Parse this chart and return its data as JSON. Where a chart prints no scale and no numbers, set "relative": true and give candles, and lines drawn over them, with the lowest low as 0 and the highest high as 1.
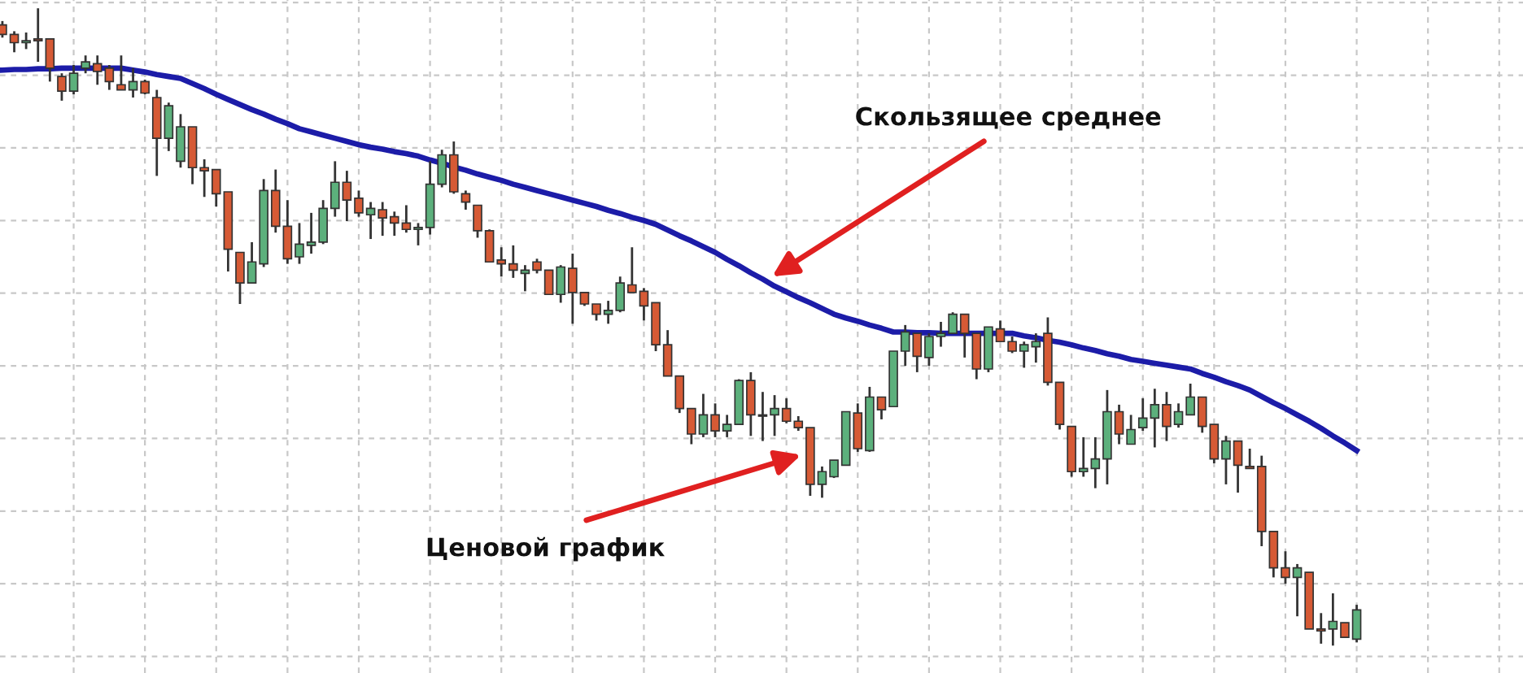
{
  "chart_data": {
    "type": "candlestick",
    "relative": true,
    "grid": true,
    "categories": [
      null,
      null,
      null,
      null,
      null,
      null,
      null,
      null,
      null,
      null,
      null,
      null,
      null,
      null,
      null,
      null,
      null,
      null,
      null,
      null,
      null,
      null,
      null,
      null,
      null,
      null,
      null,
      null,
      null,
      null,
      null,
      null,
      null,
      null,
      null,
      null,
      null,
      null,
      null,
      null,
      null,
      null,
      null,
      null,
      null,
      null,
      null,
      null,
      null,
      null,
      null,
      null,
      null,
      null,
      null,
      null,
      null,
      null,
      null,
      null,
      null,
      null,
      null,
      null,
      null,
      null,
      null,
      null,
      null,
      null,
      null,
      null,
      null,
      null,
      null,
      null,
      null,
      null,
      null,
      null,
      null,
      null,
      null,
      null,
      null,
      null,
      null,
      null,
      null,
      null,
      null,
      null,
      null,
      null,
      null,
      null,
      null,
      null,
      null,
      null,
      null,
      null,
      null,
      null,
      null,
      null,
      null,
      null,
      null,
      null,
      null,
      null,
      null,
      null,
      null
    ],
    "ohlc": [
      [
        0.974,
        0.98,
        0.954,
        0.959
      ],
      [
        0.959,
        0.964,
        0.931,
        0.946
      ],
      [
        0.946,
        0.962,
        0.936,
        0.949
      ],
      [
        0.952,
        1.0,
        0.916,
        0.949
      ],
      [
        0.952,
        0.952,
        0.885,
        0.906
      ],
      [
        0.893,
        0.898,
        0.855,
        0.87
      ],
      [
        0.87,
        0.911,
        0.865,
        0.898
      ],
      [
        0.906,
        0.926,
        0.898,
        0.916
      ],
      [
        0.913,
        0.926,
        0.88,
        0.901
      ],
      [
        0.906,
        0.911,
        0.872,
        0.885
      ],
      [
        0.88,
        0.926,
        0.872,
        0.872
      ],
      [
        0.872,
        0.906,
        0.86,
        0.885
      ],
      [
        0.885,
        0.888,
        0.865,
        0.867
      ],
      [
        0.86,
        0.872,
        0.737,
        0.796
      ],
      [
        0.796,
        0.852,
        0.776,
        0.847
      ],
      [
        0.76,
        0.834,
        0.75,
        0.814
      ],
      [
        0.814,
        0.814,
        0.724,
        0.75
      ],
      [
        0.75,
        0.763,
        0.704,
        0.745
      ],
      [
        0.747,
        0.747,
        0.689,
        0.709
      ],
      [
        0.712,
        0.712,
        0.587,
        0.622
      ],
      [
        0.617,
        0.617,
        0.536,
        0.569
      ],
      [
        0.569,
        0.633,
        0.569,
        0.602
      ],
      [
        0.599,
        0.732,
        0.594,
        0.714
      ],
      [
        0.714,
        0.747,
        0.648,
        0.658
      ],
      [
        0.658,
        0.699,
        0.599,
        0.607
      ],
      [
        0.61,
        0.663,
        0.599,
        0.63
      ],
      [
        0.628,
        0.679,
        0.615,
        0.633
      ],
      [
        0.633,
        0.699,
        0.63,
        0.686
      ],
      [
        0.686,
        0.76,
        0.673,
        0.727
      ],
      [
        0.727,
        0.745,
        0.666,
        0.699
      ],
      [
        0.702,
        0.714,
        0.673,
        0.679
      ],
      [
        0.676,
        0.696,
        0.638,
        0.686
      ],
      [
        0.684,
        0.696,
        0.643,
        0.671
      ],
      [
        0.673,
        0.681,
        0.643,
        0.663
      ],
      [
        0.663,
        0.691,
        0.648,
        0.653
      ],
      [
        0.653,
        0.663,
        0.628,
        0.656
      ],
      [
        0.656,
        0.76,
        0.645,
        0.724
      ],
      [
        0.724,
        0.778,
        0.719,
        0.77
      ],
      [
        0.77,
        0.791,
        0.709,
        0.712
      ],
      [
        0.709,
        0.714,
        0.684,
        0.696
      ],
      [
        0.691,
        0.691,
        0.64,
        0.651
      ],
      [
        0.651,
        0.653,
        0.602,
        0.602
      ],
      [
        0.605,
        0.625,
        0.579,
        0.599
      ],
      [
        0.599,
        0.628,
        0.577,
        0.589
      ],
      [
        0.584,
        0.597,
        0.556,
        0.589
      ],
      [
        0.602,
        0.607,
        0.584,
        0.589
      ],
      [
        0.589,
        0.589,
        0.551,
        0.551
      ],
      [
        0.551,
        0.597,
        0.538,
        0.594
      ],
      [
        0.592,
        0.615,
        0.505,
        0.554
      ],
      [
        0.554,
        0.554,
        0.533,
        0.536
      ],
      [
        0.536,
        0.536,
        0.51,
        0.52
      ],
      [
        0.52,
        0.541,
        0.505,
        0.526
      ],
      [
        0.526,
        0.579,
        0.523,
        0.569
      ],
      [
        0.566,
        0.625,
        0.554,
        0.554
      ],
      [
        0.556,
        0.561,
        0.51,
        0.533
      ],
      [
        0.538,
        0.538,
        0.462,
        0.472
      ],
      [
        0.472,
        0.495,
        0.423,
        0.423
      ],
      [
        0.423,
        0.423,
        0.365,
        0.372
      ],
      [
        0.372,
        0.372,
        0.316,
        0.332
      ],
      [
        0.332,
        0.395,
        0.327,
        0.362
      ],
      [
        0.362,
        0.38,
        0.327,
        0.337
      ],
      [
        0.337,
        0.362,
        0.327,
        0.347
      ],
      [
        0.347,
        0.418,
        0.347,
        0.416
      ],
      [
        0.416,
        0.429,
        0.329,
        0.362
      ],
      [
        0.362,
        0.398,
        0.321,
        0.36
      ],
      [
        0.362,
        0.393,
        0.329,
        0.372
      ],
      [
        0.372,
        0.388,
        0.349,
        0.352
      ],
      [
        0.352,
        0.36,
        0.337,
        0.342
      ],
      [
        0.342,
        0.342,
        0.235,
        0.253
      ],
      [
        0.253,
        0.281,
        0.232,
        0.273
      ],
      [
        0.265,
        0.291,
        0.263,
        0.291
      ],
      [
        0.283,
        0.367,
        0.283,
        0.367
      ],
      [
        0.365,
        0.38,
        0.304,
        0.309
      ],
      [
        0.306,
        0.406,
        0.304,
        0.39
      ],
      [
        0.39,
        0.39,
        0.355,
        0.37
      ],
      [
        0.375,
        0.462,
        0.375,
        0.462
      ],
      [
        0.462,
        0.503,
        0.439,
        0.492
      ],
      [
        0.49,
        0.49,
        0.429,
        0.454
      ],
      [
        0.452,
        0.49,
        0.439,
        0.485
      ],
      [
        0.485,
        0.508,
        0.469,
        0.49
      ],
      [
        0.49,
        0.523,
        0.49,
        0.52
      ],
      [
        0.52,
        0.52,
        0.452,
        0.49
      ],
      [
        0.49,
        0.49,
        0.418,
        0.434
      ],
      [
        0.434,
        0.5,
        0.429,
        0.5
      ],
      [
        0.497,
        0.51,
        0.477,
        0.477
      ],
      [
        0.477,
        0.485,
        0.459,
        0.462
      ],
      [
        0.462,
        0.477,
        0.436,
        0.472
      ],
      [
        0.469,
        0.49,
        0.444,
        0.477
      ],
      [
        0.49,
        0.515,
        0.408,
        0.413
      ],
      [
        0.413,
        0.413,
        0.339,
        0.347
      ],
      [
        0.344,
        0.344,
        0.265,
        0.273
      ],
      [
        0.273,
        0.327,
        0.265,
        0.278
      ],
      [
        0.278,
        0.327,
        0.247,
        0.293
      ],
      [
        0.293,
        0.401,
        0.253,
        0.367
      ],
      [
        0.367,
        0.378,
        0.316,
        0.332
      ],
      [
        0.316,
        0.362,
        0.316,
        0.339
      ],
      [
        0.342,
        0.388,
        0.337,
        0.357
      ],
      [
        0.357,
        0.403,
        0.311,
        0.378
      ],
      [
        0.378,
        0.398,
        0.321,
        0.344
      ],
      [
        0.347,
        0.38,
        0.342,
        0.367
      ],
      [
        0.362,
        0.411,
        0.362,
        0.39
      ],
      [
        0.39,
        0.39,
        0.334,
        0.344
      ],
      [
        0.347,
        0.347,
        0.286,
        0.293
      ],
      [
        0.293,
        0.329,
        0.253,
        0.321
      ],
      [
        0.321,
        0.321,
        0.24,
        0.283
      ],
      [
        0.281,
        0.309,
        0.278,
        0.278
      ],
      [
        0.281,
        0.298,
        0.156,
        0.179
      ],
      [
        0.179,
        0.179,
        0.107,
        0.122
      ],
      [
        0.122,
        0.148,
        0.097,
        0.107
      ],
      [
        0.107,
        0.128,
        0.046,
        0.122
      ],
      [
        0.115,
        0.115,
        0.026,
        0.026
      ],
      [
        0.026,
        0.051,
        0.003,
        0.023
      ],
      [
        0.026,
        0.082,
        0.0,
        0.038
      ],
      [
        0.036,
        0.036,
        0.013,
        0.013
      ],
      [
        0.01,
        0.064,
        0.005,
        0.056
      ]
    ],
    "colors": [
      "#d65a35",
      "#d65a35",
      "#5cb07c",
      "#d65a35",
      "#d65a35",
      "#d65a35",
      "#5cb07c",
      "#5cb07c",
      "#d65a35",
      "#d65a35",
      "#d65a35",
      "#5cb07c",
      "#d65a35",
      "#d65a35",
      "#5cb07c",
      "#5cb07c",
      "#d65a35",
      "#d65a35",
      "#d65a35",
      "#d65a35",
      "#d65a35",
      "#5cb07c",
      "#5cb07c",
      "#d65a35",
      "#d65a35",
      "#5cb07c",
      "#5cb07c",
      "#5cb07c",
      "#5cb07c",
      "#d65a35",
      "#d65a35",
      "#5cb07c",
      "#d65a35",
      "#d65a35",
      "#d65a35",
      "#5cb07c",
      "#5cb07c",
      "#5cb07c",
      "#d65a35",
      "#d65a35",
      "#d65a35",
      "#d65a35",
      "#d65a35",
      "#d65a35",
      "#5cb07c",
      "#d65a35",
      "#d65a35",
      "#5cb07c",
      "#d65a35",
      "#d65a35",
      "#d65a35",
      "#5cb07c",
      "#5cb07c",
      "#d65a35",
      "#d65a35",
      "#d65a35",
      "#d65a35",
      "#d65a35",
      "#d65a35",
      "#5cb07c",
      "#d65a35",
      "#5cb07c",
      "#5cb07c",
      "#d65a35",
      "#d65a35",
      "#5cb07c",
      "#d65a35",
      "#d65a35",
      "#d65a35",
      "#5cb07c",
      "#5cb07c",
      "#5cb07c",
      "#d65a35",
      "#5cb07c",
      "#d65a35",
      "#5cb07c",
      "#5cb07c",
      "#d65a35",
      "#5cb07c",
      "#5cb07c",
      "#5cb07c",
      "#d65a35",
      "#d65a35",
      "#5cb07c",
      "#d65a35",
      "#d65a35",
      "#5cb07c",
      "#5cb07c",
      "#d65a35",
      "#d65a35",
      "#d65a35",
      "#5cb07c",
      "#5cb07c",
      "#5cb07c",
      "#d65a35",
      "#5cb07c",
      "#5cb07c",
      "#5cb07c",
      "#d65a35",
      "#5cb07c",
      "#5cb07c",
      "#d65a35",
      "#d65a35",
      "#5cb07c",
      "#d65a35",
      "#d65a35",
      "#d65a35",
      "#d65a35",
      "#d65a35",
      "#5cb07c",
      "#d65a35",
      "#d65a35",
      "#5cb07c",
      "#d65a35",
      "#5cb07c"
    ],
    "series": [
      {
        "type": "line",
        "color": "#1c1ca8",
        "values": [
          0.903,
          0.904,
          0.904,
          0.905,
          0.905,
          0.906,
          0.906,
          0.906,
          0.906,
          0.906,
          0.906,
          0.903,
          0.9,
          0.896,
          0.893,
          0.89,
          0.882,
          0.874,
          0.865,
          0.857,
          0.849,
          0.841,
          0.834,
          0.826,
          0.819,
          0.811,
          0.806,
          0.801,
          0.796,
          0.791,
          0.786,
          0.782,
          0.779,
          0.775,
          0.772,
          0.768,
          0.762,
          0.757,
          0.751,
          0.746,
          0.74,
          0.735,
          0.73,
          0.724,
          0.719,
          0.714,
          0.709,
          0.704,
          0.699,
          0.694,
          0.689,
          0.683,
          0.678,
          0.672,
          0.667,
          0.661,
          0.652,
          0.643,
          0.635,
          0.626,
          0.617,
          0.606,
          0.596,
          0.585,
          0.575,
          0.564,
          0.555,
          0.546,
          0.538,
          0.529,
          0.52,
          0.514,
          0.509,
          0.503,
          0.498,
          0.492,
          0.492,
          0.491,
          0.491,
          0.49,
          0.49,
          0.49,
          0.49,
          0.49,
          0.49,
          0.49,
          0.486,
          0.483,
          0.479,
          0.476,
          0.472,
          0.467,
          0.463,
          0.458,
          0.454,
          0.449,
          0.446,
          0.443,
          0.44,
          0.437,
          0.434,
          0.427,
          0.421,
          0.414,
          0.408,
          0.401,
          0.391,
          0.381,
          0.372,
          0.362,
          0.352,
          0.341,
          0.329,
          0.318,
          0.306
        ]
      }
    ],
    "annotations": [
      "Скользящее среднее",
      "Ценовой график"
    ]
  }
}
